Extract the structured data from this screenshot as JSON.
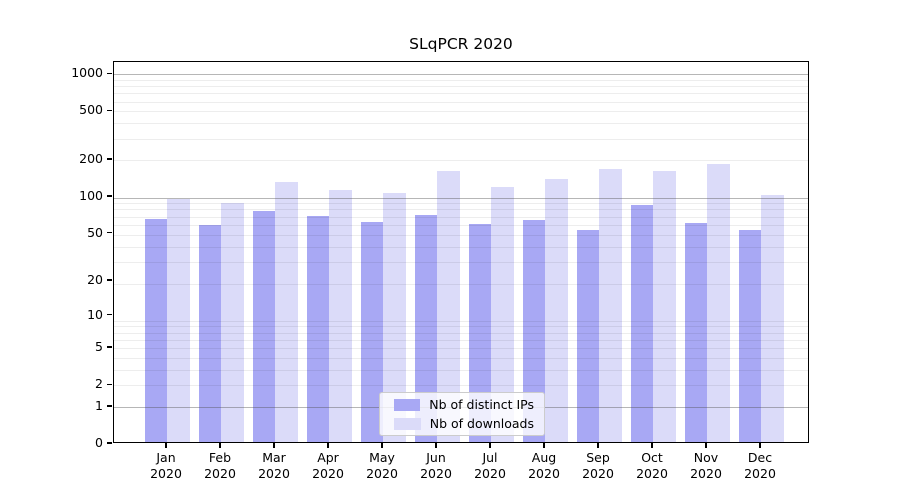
{
  "title": "SLqPCR 2020",
  "legend": {
    "items": [
      {
        "label": "Nb of distinct IPs",
        "color": "#a8a8f4"
      },
      {
        "label": "Nb of downloads",
        "color": "#dbdbf9"
      }
    ]
  },
  "axes": {
    "y_tick_labels": [
      "1000",
      "500",
      "200",
      "100",
      "50",
      "20",
      "10",
      "5",
      "2",
      "1",
      "0"
    ],
    "x_tick_labels": [
      "Jan\n2020",
      "Feb\n2020",
      "Mar\n2020",
      "Apr\n2020",
      "May\n2020",
      "Jun\n2020",
      "Jul\n2020",
      "Aug\n2020",
      "Sep\n2020",
      "Oct\n2020",
      "Nov\n2020",
      "Dec\n2020"
    ]
  },
  "chart_data": {
    "type": "bar",
    "title": "SLqPCR 2020",
    "categories": [
      "Jan 2020",
      "Feb 2020",
      "Mar 2020",
      "Apr 2020",
      "May 2020",
      "Jun 2020",
      "Jul 2020",
      "Aug 2020",
      "Sep 2020",
      "Oct 2020",
      "Nov 2020",
      "Dec 2020"
    ],
    "series": [
      {
        "name": "Nb of distinct IPs",
        "color": "#a8a8f4",
        "values": [
          63,
          57,
          74,
          67,
          60,
          68,
          58,
          62,
          52,
          83,
          59,
          52
        ]
      },
      {
        "name": "Nb of downloads",
        "color": "#dbdbf9",
        "values": [
          92,
          86,
          127,
          109,
          104,
          157,
          116,
          136,
          164,
          156,
          180,
          100
        ]
      }
    ],
    "xlabel": "",
    "ylabel": "",
    "yscale": "log1p",
    "yticks": [
      1000,
      500,
      200,
      100,
      50,
      20,
      10,
      5,
      2,
      1,
      0
    ],
    "ylim": [
      0,
      1259
    ],
    "grid": "horizontal major+minor",
    "legend_position": "lower center inside"
  }
}
